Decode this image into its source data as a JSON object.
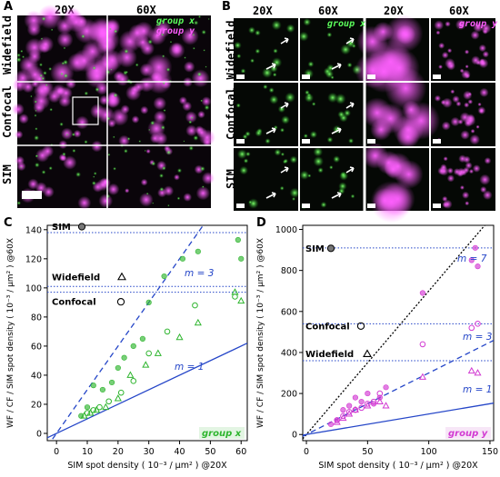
{
  "panel_a": {
    "label": "A",
    "columns": [
      "20X",
      "60X"
    ],
    "rows": [
      "Widefield",
      "Confocal",
      "SIM"
    ],
    "legend": [
      "group x",
      "group y"
    ]
  },
  "panel_b": {
    "label": "B",
    "columns": [
      "20X",
      "60X",
      "20X",
      "60X"
    ],
    "rows": [
      "Widefield",
      "Confocal",
      "SIM"
    ],
    "legend_x": "group x",
    "legend_y": "group y"
  },
  "colors": {
    "green": "#2fb52f",
    "magenta": "#d23ad2",
    "blue": "#2546c8"
  },
  "chart_data": [
    {
      "panel": "C",
      "type": "scatter",
      "xlabel": "SIM spot density ( 10⁻³ / µm² ) @20X",
      "ylabel": "WF / CF / SIM spot density ( 10⁻³ / µm² ) @60X",
      "xlim": [
        -3,
        62
      ],
      "ylim": [
        -5,
        143
      ],
      "xticks": [
        "0",
        "10",
        "20",
        "30",
        "40",
        "50",
        "60"
      ],
      "yticks": [
        "0",
        "20",
        "40",
        "60",
        "80",
        "100",
        "120",
        "140"
      ],
      "tag": "group x",
      "hlines": [
        {
          "name": "SIM",
          "y": 138
        },
        {
          "name": "Widefield",
          "y": 101
        },
        {
          "name": "Confocal",
          "y": 97
        }
      ],
      "lines": [
        {
          "label": "m = 3",
          "slope": 3,
          "style": "dashed"
        },
        {
          "label": "m = 1",
          "slope": 1,
          "style": "solid"
        }
      ],
      "series": [
        {
          "name": "SIM",
          "marker": "filled-circle",
          "x": [
            8,
            10,
            12,
            15,
            18,
            20,
            22,
            25,
            28,
            30,
            35,
            41,
            46,
            59,
            60
          ],
          "y": [
            12,
            18,
            33,
            30,
            35,
            45,
            52,
            60,
            65,
            90,
            108,
            120,
            125,
            133,
            120
          ]
        },
        {
          "name": "Widefield",
          "marker": "triangle",
          "x": [
            9,
            11,
            13,
            16,
            20,
            24,
            29,
            33,
            40,
            46,
            58,
            60
          ],
          "y": [
            12,
            14,
            16,
            18,
            24,
            40,
            47,
            55,
            66,
            76,
            97,
            91
          ]
        },
        {
          "name": "Confocal",
          "marker": "open-circle",
          "x": [
            10,
            12,
            14,
            17,
            21,
            25,
            30,
            36,
            45,
            58
          ],
          "y": [
            14,
            16,
            18,
            22,
            28,
            36,
            55,
            70,
            88,
            94
          ]
        }
      ]
    },
    {
      "panel": "D",
      "type": "scatter",
      "xlabel": "SIM spot density ( 10⁻³ / µm² ) @20X",
      "ylabel": "WF / CF / SIM spot density ( 10⁻³ / µm² ) @60X",
      "xlim": [
        -3,
        153
      ],
      "ylim": [
        -30,
        1020
      ],
      "xticks": [
        "0",
        "50",
        "100",
        "150"
      ],
      "yticks": [
        "0",
        "200",
        "400",
        "600",
        "800",
        "1000"
      ],
      "tag": "group y",
      "hlines": [
        {
          "name": "SIM",
          "y": 910
        },
        {
          "name": "Confocal",
          "y": 540
        },
        {
          "name": "Widefield",
          "y": 360
        }
      ],
      "lines": [
        {
          "label": "m = 7",
          "slope": 7,
          "style": "dotted"
        },
        {
          "label": "m = 3",
          "slope": 3,
          "style": "dashed"
        },
        {
          "label": "m = 1",
          "slope": 1,
          "style": "solid"
        }
      ],
      "series": [
        {
          "name": "SIM",
          "marker": "filled-circle",
          "x": [
            20,
            25,
            30,
            35,
            40,
            45,
            50,
            55,
            60,
            65,
            95,
            135,
            138,
            140
          ],
          "y": [
            50,
            70,
            120,
            140,
            180,
            160,
            200,
            150,
            180,
            230,
            690,
            850,
            910,
            820
          ]
        },
        {
          "name": "Widefield",
          "marker": "triangle",
          "x": [
            25,
            30,
            35,
            40,
            50,
            60,
            65,
            95,
            135,
            140
          ],
          "y": [
            60,
            80,
            100,
            120,
            140,
            160,
            140,
            280,
            310,
            300
          ]
        },
        {
          "name": "Confocal",
          "marker": "open-circle",
          "x": [
            25,
            30,
            35,
            40,
            45,
            50,
            55,
            60,
            95,
            135,
            140
          ],
          "y": [
            70,
            90,
            110,
            120,
            130,
            150,
            160,
            200,
            440,
            520,
            540
          ]
        }
      ]
    }
  ],
  "panel_c": {
    "label": "C"
  },
  "panel_d": {
    "label": "D"
  }
}
